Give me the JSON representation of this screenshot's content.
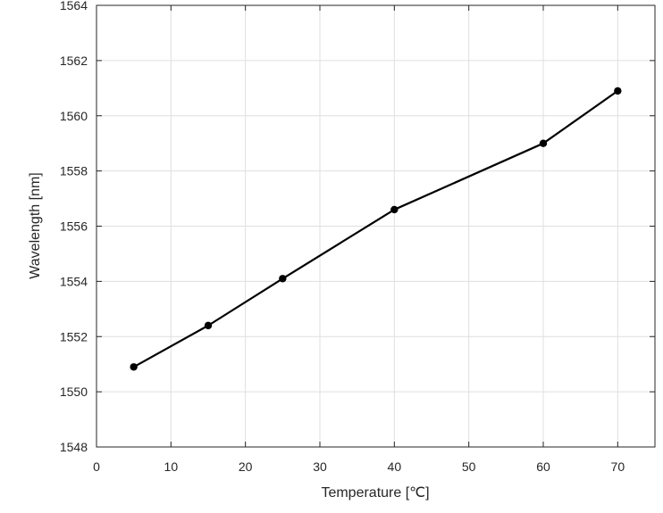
{
  "chart_data": {
    "type": "line",
    "title": "",
    "xlabel": "Temperature [℃]",
    "ylabel": "Wavelength [nm]",
    "xlim": [
      0,
      75
    ],
    "ylim": [
      1548,
      1564
    ],
    "xticks": [
      0,
      10,
      20,
      30,
      40,
      50,
      60,
      70
    ],
    "yticks": [
      1548,
      1550,
      1552,
      1554,
      1556,
      1558,
      1560,
      1562,
      1564
    ],
    "grid": true,
    "legend": "none",
    "series": [
      {
        "color": "#000000",
        "marker": "circle",
        "x": [
          5,
          15,
          25,
          40,
          60,
          70
        ],
        "y": [
          1550.9,
          1552.4,
          1554.1,
          1556.6,
          1559.0,
          1560.9
        ]
      }
    ]
  }
}
